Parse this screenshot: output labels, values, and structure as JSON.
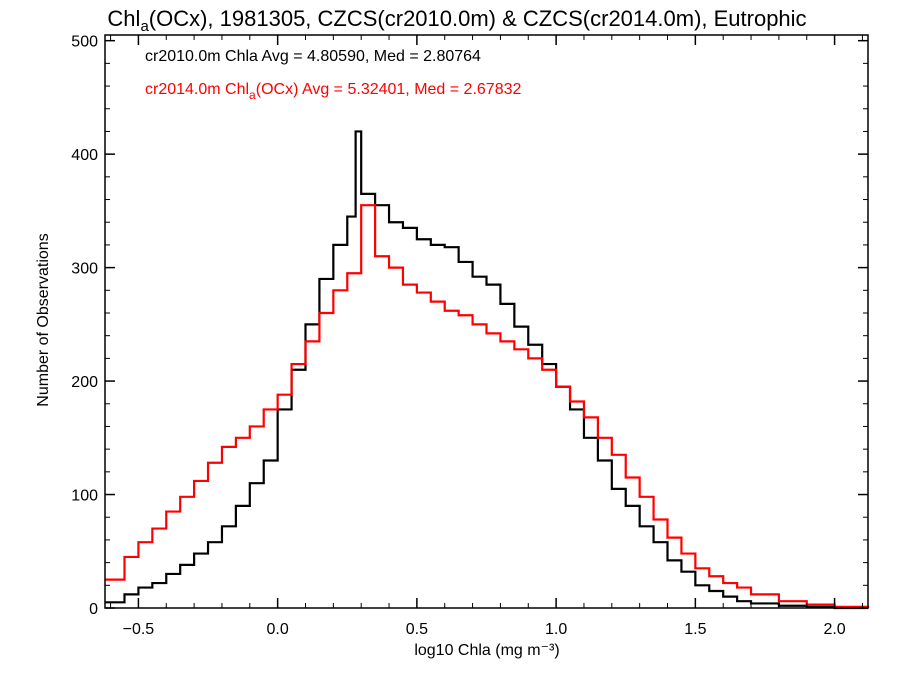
{
  "chart_data": {
    "type": "line",
    "title": "Chl_a(OCx), 1981305, CZCS(cr2010.0m) & CZCS(cr2014.0m), Eutrophic",
    "title_parts": {
      "pre": "Chl",
      "sub": "a",
      "post": "(OCx), 1981305, CZCS(cr2010.0m) & CZCS(cr2014.0m), Eutrophic"
    },
    "xlabel": "log10 Chla (mg m⁻³)",
    "ylabel": "Number of Observations",
    "xlim": [
      -0.62,
      2.12
    ],
    "ylim": [
      0,
      505
    ],
    "xticks": [
      {
        "value": -0.5,
        "label": "−0.5"
      },
      {
        "value": 0.0,
        "label": "0.0"
      },
      {
        "value": 0.5,
        "label": "0.5"
      },
      {
        "value": 1.0,
        "label": "1.0"
      },
      {
        "value": 1.5,
        "label": "1.5"
      },
      {
        "value": 2.0,
        "label": "2.0"
      }
    ],
    "yticks": [
      {
        "value": 0,
        "label": "0"
      },
      {
        "value": 100,
        "label": "100"
      },
      {
        "value": 200,
        "label": "200"
      },
      {
        "value": 300,
        "label": "300"
      },
      {
        "value": 400,
        "label": "400"
      },
      {
        "value": 500,
        "label": "500"
      }
    ],
    "grid": false,
    "legend_placement": "top-left",
    "legend": [
      {
        "series": 0,
        "text": "cr2010.0m Chla Avg = 4.80590, Med = 2.80764"
      },
      {
        "series": 1,
        "pre": "cr2014.0m Chl",
        "sub": "a",
        "post": "(OCx) Avg = 5.32401, Med = 2.67832"
      }
    ],
    "series": [
      {
        "color": "#000000",
        "style": "step",
        "points": [
          [
            -0.62,
            5
          ],
          [
            -0.55,
            12
          ],
          [
            -0.5,
            18
          ],
          [
            -0.45,
            22
          ],
          [
            -0.4,
            30
          ],
          [
            -0.35,
            38
          ],
          [
            -0.3,
            48
          ],
          [
            -0.25,
            58
          ],
          [
            -0.2,
            72
          ],
          [
            -0.15,
            90
          ],
          [
            -0.1,
            110
          ],
          [
            -0.05,
            130
          ],
          [
            0.0,
            175
          ],
          [
            0.05,
            210
          ],
          [
            0.1,
            250
          ],
          [
            0.15,
            290
          ],
          [
            0.2,
            320
          ],
          [
            0.25,
            345
          ],
          [
            0.28,
            420
          ],
          [
            0.3,
            365
          ],
          [
            0.35,
            355
          ],
          [
            0.4,
            340
          ],
          [
            0.45,
            335
          ],
          [
            0.5,
            325
          ],
          [
            0.55,
            320
          ],
          [
            0.6,
            318
          ],
          [
            0.65,
            305
          ],
          [
            0.7,
            292
          ],
          [
            0.75,
            285
          ],
          [
            0.8,
            268
          ],
          [
            0.85,
            248
          ],
          [
            0.9,
            232
          ],
          [
            0.95,
            215
          ],
          [
            1.0,
            195
          ],
          [
            1.05,
            175
          ],
          [
            1.1,
            150
          ],
          [
            1.15,
            130
          ],
          [
            1.2,
            105
          ],
          [
            1.25,
            90
          ],
          [
            1.3,
            72
          ],
          [
            1.35,
            58
          ],
          [
            1.4,
            42
          ],
          [
            1.45,
            32
          ],
          [
            1.5,
            20
          ],
          [
            1.55,
            15
          ],
          [
            1.6,
            10
          ],
          [
            1.65,
            6
          ],
          [
            1.7,
            4
          ],
          [
            1.8,
            2
          ],
          [
            1.9,
            1
          ],
          [
            2.0,
            0
          ],
          [
            2.12,
            0
          ]
        ]
      },
      {
        "color": "#ff0000",
        "style": "step",
        "points": [
          [
            -0.62,
            25
          ],
          [
            -0.55,
            45
          ],
          [
            -0.5,
            58
          ],
          [
            -0.45,
            70
          ],
          [
            -0.4,
            85
          ],
          [
            -0.35,
            98
          ],
          [
            -0.3,
            112
          ],
          [
            -0.25,
            128
          ],
          [
            -0.2,
            142
          ],
          [
            -0.15,
            150
          ],
          [
            -0.1,
            160
          ],
          [
            -0.05,
            175
          ],
          [
            0.0,
            188
          ],
          [
            0.05,
            215
          ],
          [
            0.1,
            235
          ],
          [
            0.15,
            260
          ],
          [
            0.2,
            280
          ],
          [
            0.25,
            295
          ],
          [
            0.3,
            355
          ],
          [
            0.35,
            310
          ],
          [
            0.4,
            300
          ],
          [
            0.45,
            285
          ],
          [
            0.5,
            278
          ],
          [
            0.55,
            270
          ],
          [
            0.6,
            262
          ],
          [
            0.65,
            258
          ],
          [
            0.7,
            250
          ],
          [
            0.75,
            242
          ],
          [
            0.8,
            235
          ],
          [
            0.85,
            228
          ],
          [
            0.9,
            220
          ],
          [
            0.95,
            210
          ],
          [
            1.0,
            195
          ],
          [
            1.05,
            182
          ],
          [
            1.1,
            168
          ],
          [
            1.15,
            150
          ],
          [
            1.2,
            135
          ],
          [
            1.25,
            115
          ],
          [
            1.3,
            98
          ],
          [
            1.35,
            78
          ],
          [
            1.4,
            62
          ],
          [
            1.45,
            48
          ],
          [
            1.5,
            35
          ],
          [
            1.55,
            28
          ],
          [
            1.6,
            22
          ],
          [
            1.65,
            18
          ],
          [
            1.7,
            12
          ],
          [
            1.8,
            6
          ],
          [
            1.9,
            3
          ],
          [
            2.0,
            1
          ],
          [
            2.12,
            0
          ]
        ]
      }
    ]
  }
}
